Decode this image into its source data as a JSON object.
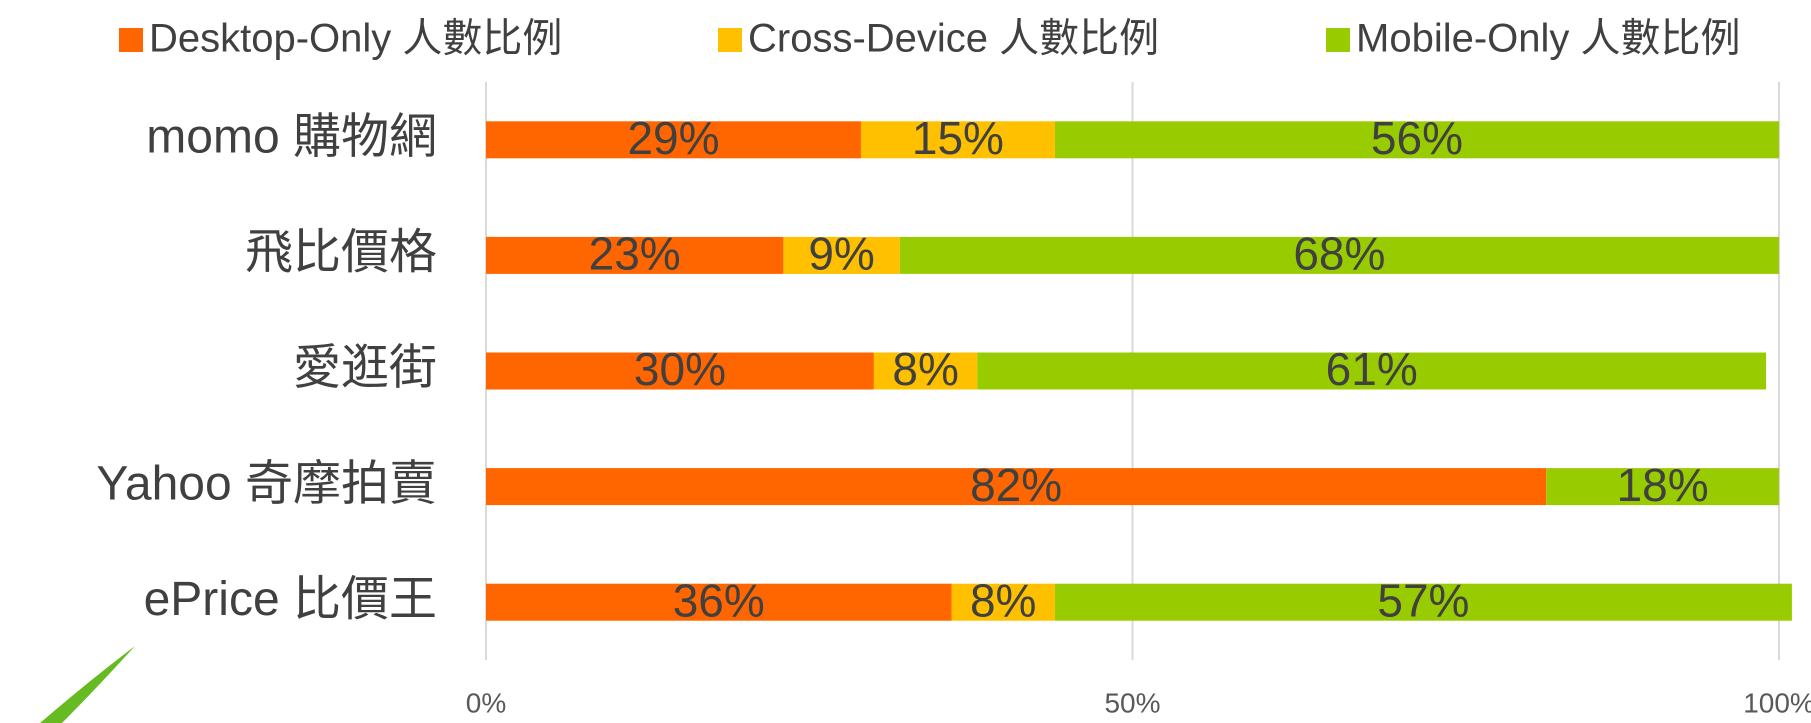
{
  "chart_data": {
    "type": "stacked_barh",
    "categories": [
      "momo 購物網",
      "飛比價格",
      "愛逛街",
      "Yahoo 奇摩拍賣",
      "ePrice 比價王"
    ],
    "series": [
      {
        "name": "Desktop-Only 人數比例",
        "color": "#ff6600",
        "values": [
          29,
          23,
          30,
          82,
          36
        ],
        "value_labels": [
          "29%",
          "23%",
          "30%",
          "82%",
          "36%"
        ]
      },
      {
        "name": "Cross-Device 人數比例",
        "color": "#ffc000",
        "values": [
          15,
          9,
          8,
          0,
          8
        ],
        "value_labels": [
          "15%",
          "9%",
          "8%",
          null,
          "8%"
        ]
      },
      {
        "name": "Mobile-Only 人數比例",
        "color": "#99cc00",
        "values": [
          56,
          68,
          61,
          18,
          57
        ],
        "value_labels": [
          "56%",
          "68%",
          "61%",
          "18%",
          "57%"
        ]
      }
    ],
    "xlim": [
      0,
      100
    ],
    "xticks": [
      {
        "value": 0,
        "label": "0%"
      },
      {
        "value": 50,
        "label": "50%"
      },
      {
        "value": 100,
        "label": "100%"
      }
    ],
    "grid": true,
    "legend": "top"
  }
}
